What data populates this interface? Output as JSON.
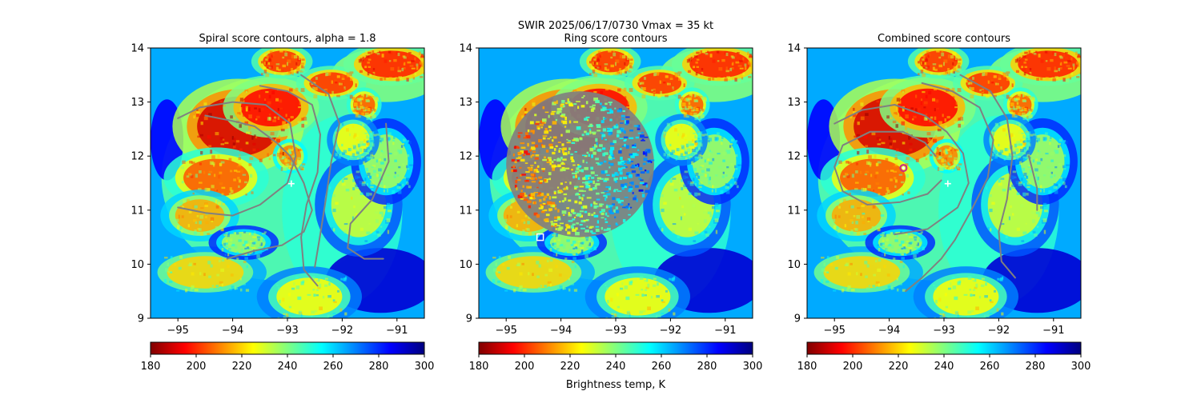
{
  "figure": {
    "suptitle": "SWIR  2025/06/17/0730    Vmax = 35 kt",
    "colorbar_label": "Brightness temp, K"
  },
  "colors": {
    "contour": "#808080",
    "center_marker": "#ffffff",
    "combined_marker": "#cc2288",
    "ring_marker": "#ffffff"
  },
  "colormap": {
    "name": "jet_r",
    "stops": [
      "#800000",
      "#ff0000",
      "#ff8000",
      "#ffff00",
      "#80ff80",
      "#00ffff",
      "#0080ff",
      "#0000ff",
      "#000080"
    ]
  },
  "chart_data": [
    {
      "type": "heatmap",
      "title": "Spiral score contours, alpha =  1.8",
      "xlim": [
        -95.5,
        -90.5
      ],
      "ylim": [
        9,
        14
      ],
      "xticks": [
        -95,
        -94,
        -93,
        -92,
        -91
      ],
      "xtick_labels": [
        "−95",
        "−94",
        "−93",
        "−92",
        "−91"
      ],
      "yticks": [
        9,
        10,
        11,
        12,
        13,
        14
      ],
      "ytick_labels": [
        "9",
        "10",
        "11",
        "12",
        "13",
        "14"
      ],
      "colorbar": {
        "min": 180,
        "max": 300,
        "ticks": [
          180,
          200,
          220,
          240,
          260,
          280,
          300
        ],
        "tick_labels": [
          "180",
          "200",
          "220",
          "240",
          "260",
          "280",
          "300"
        ]
      },
      "center_marker": {
        "x": -92.93,
        "y": 11.49,
        "symbol": "+"
      },
      "contours": [
        [
          [
            -95.0,
            11.05
          ],
          [
            -94.5,
            10.95
          ],
          [
            -94.0,
            10.9
          ],
          [
            -93.5,
            11.1
          ],
          [
            -93.0,
            11.5
          ],
          [
            -92.85,
            12.0
          ],
          [
            -92.95,
            12.6
          ],
          [
            -93.4,
            12.95
          ],
          [
            -94.0,
            13.0
          ],
          [
            -94.6,
            12.9
          ],
          [
            -95.0,
            12.7
          ]
        ],
        [
          [
            -94.5,
            12.75
          ],
          [
            -94.0,
            12.65
          ],
          [
            -93.6,
            12.55
          ],
          [
            -93.2,
            12.25
          ],
          [
            -92.95,
            12.0
          ],
          [
            -92.7,
            11.5
          ],
          [
            -92.55,
            11.0
          ],
          [
            -92.7,
            10.6
          ],
          [
            -93.1,
            10.35
          ],
          [
            -93.6,
            10.25
          ],
          [
            -94.1,
            10.1
          ]
        ],
        [
          [
            -93.5,
            13.3
          ],
          [
            -93.0,
            13.2
          ],
          [
            -92.55,
            12.95
          ],
          [
            -92.4,
            12.4
          ],
          [
            -92.45,
            11.7
          ],
          [
            -92.65,
            11.1
          ],
          [
            -92.75,
            10.5
          ],
          [
            -92.7,
            9.9
          ],
          [
            -92.45,
            9.6
          ]
        ],
        [
          [
            -92.75,
            13.5
          ],
          [
            -92.25,
            13.15
          ],
          [
            -92.05,
            12.6
          ],
          [
            -92.2,
            11.9
          ],
          [
            -92.3,
            11.2
          ],
          [
            -92.4,
            10.55
          ],
          [
            -92.5,
            9.95
          ]
        ],
        [
          [
            -91.2,
            12.6
          ],
          [
            -91.15,
            11.9
          ],
          [
            -91.45,
            11.2
          ],
          [
            -91.85,
            10.75
          ],
          [
            -91.9,
            10.3
          ],
          [
            -91.6,
            10.1
          ],
          [
            -91.25,
            10.1
          ]
        ]
      ]
    },
    {
      "type": "heatmap",
      "title": "Ring score contours",
      "xlim": [
        -95.5,
        -90.5
      ],
      "ylim": [
        9,
        14
      ],
      "xticks": [
        -95,
        -94,
        -93,
        -92,
        -91
      ],
      "xtick_labels": [
        "−95",
        "−94",
        "−93",
        "−92",
        "−91"
      ],
      "yticks": [
        9,
        10,
        11,
        12,
        13,
        14
      ],
      "ytick_labels": [
        "9",
        "10",
        "11",
        "12",
        "13",
        "14"
      ],
      "colorbar": {
        "min": 180,
        "max": 300,
        "ticks": [
          180,
          200,
          220,
          240,
          260,
          280,
          300
        ],
        "tick_labels": [
          "180",
          "200",
          "220",
          "240",
          "260",
          "280",
          "300"
        ]
      },
      "ring_region": {
        "cx": -93.65,
        "cy": 11.85,
        "rx": 1.35,
        "ry": 1.35
      },
      "ring_marker": {
        "x": -94.38,
        "y": 10.5,
        "symbol": "square"
      }
    },
    {
      "type": "heatmap",
      "title": "Combined score contours",
      "xlim": [
        -95.5,
        -90.5
      ],
      "ylim": [
        9,
        14
      ],
      "xticks": [
        -95,
        -94,
        -93,
        -92,
        -91
      ],
      "xtick_labels": [
        "−95",
        "−94",
        "−93",
        "−92",
        "−91"
      ],
      "yticks": [
        9,
        10,
        11,
        12,
        13,
        14
      ],
      "ytick_labels": [
        "9",
        "10",
        "11",
        "12",
        "13",
        "14"
      ],
      "colorbar": {
        "min": 180,
        "max": 300,
        "ticks": [
          180,
          200,
          220,
          240,
          260,
          280,
          300
        ],
        "tick_labels": [
          "180",
          "200",
          "220",
          "240",
          "260",
          "280",
          "300"
        ]
      },
      "center_marker": {
        "x": -92.93,
        "y": 11.49,
        "symbol": "+"
      },
      "combined_marker": {
        "x": -93.74,
        "y": 11.78,
        "symbol": "circle"
      },
      "contours": [
        [
          [
            -93.05,
            11.55
          ],
          [
            -93.3,
            11.3
          ],
          [
            -93.8,
            11.15
          ],
          [
            -94.4,
            11.1
          ],
          [
            -94.85,
            11.35
          ],
          [
            -95.0,
            11.8
          ],
          [
            -94.85,
            12.2
          ],
          [
            -94.35,
            12.45
          ],
          [
            -93.75,
            12.45
          ],
          [
            -93.35,
            12.25
          ],
          [
            -93.15,
            12.0
          ]
        ],
        [
          [
            -95.0,
            12.6
          ],
          [
            -94.5,
            12.85
          ],
          [
            -93.9,
            12.95
          ],
          [
            -93.35,
            12.75
          ],
          [
            -92.95,
            12.45
          ],
          [
            -92.65,
            12.05
          ],
          [
            -92.55,
            11.5
          ],
          [
            -92.75,
            11.05
          ],
          [
            -93.3,
            10.65
          ],
          [
            -93.9,
            10.55
          ]
        ],
        [
          [
            -93.4,
            13.35
          ],
          [
            -92.85,
            13.2
          ],
          [
            -92.35,
            12.9
          ],
          [
            -92.1,
            12.3
          ],
          [
            -92.2,
            11.6
          ],
          [
            -92.5,
            11.0
          ],
          [
            -92.8,
            10.45
          ],
          [
            -93.05,
            10.1
          ],
          [
            -93.4,
            9.75
          ],
          [
            -93.7,
            9.5
          ]
        ],
        [
          [
            -92.7,
            13.5
          ],
          [
            -92.15,
            13.2
          ],
          [
            -91.85,
            12.7
          ],
          [
            -91.75,
            12.0
          ],
          [
            -91.85,
            11.2
          ],
          [
            -92.0,
            10.6
          ],
          [
            -91.95,
            10.05
          ],
          [
            -91.7,
            9.75
          ]
        ],
        [
          [
            -91.45,
            12.0
          ],
          [
            -91.3,
            11.4
          ],
          [
            -91.3,
            11.0
          ]
        ]
      ]
    }
  ]
}
